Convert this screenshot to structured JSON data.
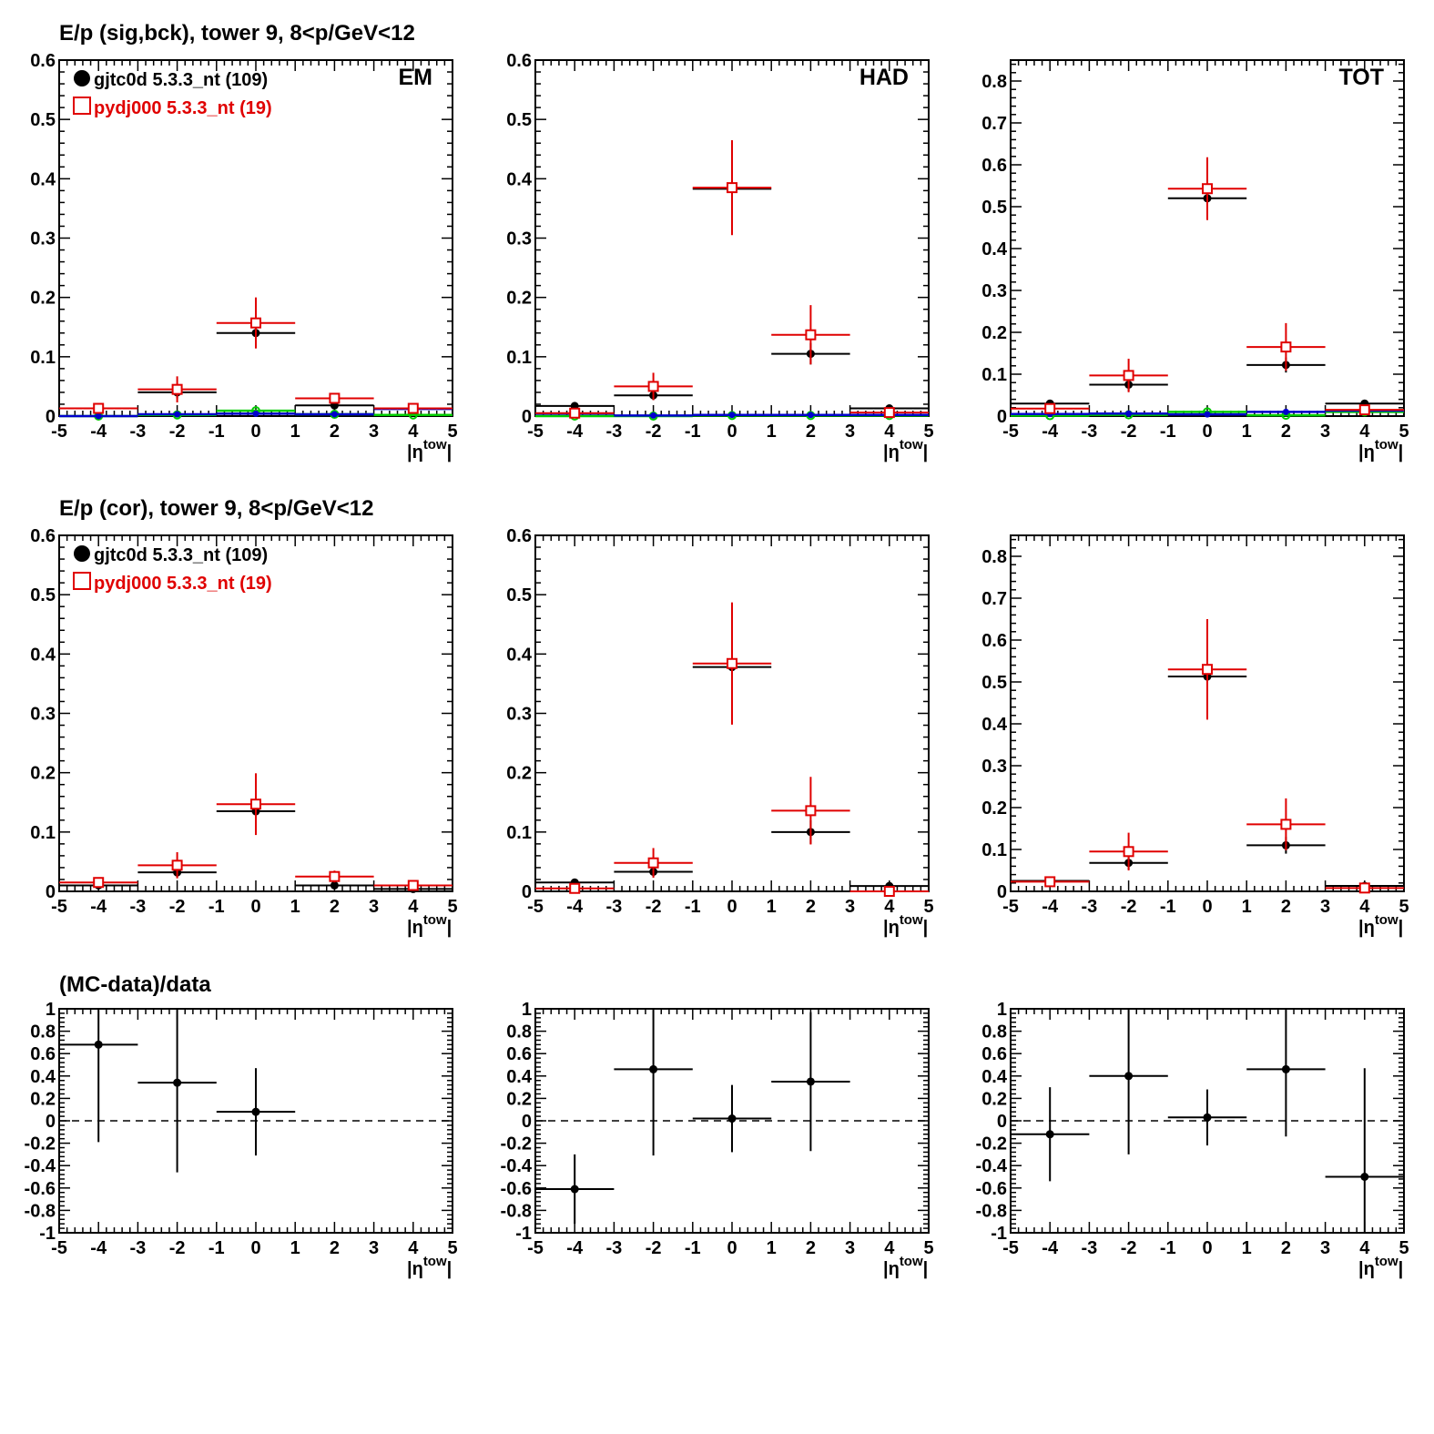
{
  "row_titles": [
    "E/p (sig,bck), tower 9,  8<p/GeV<12",
    "E/p (cor), tower 9,  8<p/GeV<12",
    "(MC-data)/data"
  ],
  "legend": {
    "data_label": "gjtc0d 5.3.3_nt (109)",
    "mc_label": "pydj000 5.3.3_nt (19)"
  },
  "colors": {
    "data": "#000000",
    "mc": "#e00000",
    "blue": "#0000cc",
    "green": "#00cc00"
  },
  "xlabel": "|η^tow|",
  "chart_data": [
    {
      "id": "sig-em",
      "type": "scatter",
      "corner_label": "EM",
      "legend": true,
      "xlabel": "|ηtow|",
      "xlim": [
        -5,
        5
      ],
      "ylim": [
        0,
        0.6
      ],
      "xticks": [
        "-5",
        "-4",
        "-3",
        "-2",
        "-1",
        "0",
        "1",
        "2",
        "3",
        "4",
        "5"
      ],
      "yticks": [
        "0",
        "0.1",
        "0.2",
        "0.3",
        "0.4",
        "0.5",
        "0.6"
      ],
      "series": [
        {
          "name": "gjtc0d 5.3.3_nt (109)",
          "style": "data",
          "x": [
            -4,
            -2,
            0,
            2,
            4
          ],
          "y": [
            0.013,
            0.04,
            0.14,
            0.018,
            0.013
          ],
          "err": [
            0.005,
            0.01,
            0.02,
            0.005,
            0.004
          ]
        },
        {
          "name": "pydj000 5.3.3_nt (19)",
          "style": "mc",
          "x": [
            -4,
            -2,
            0,
            2,
            4
          ],
          "y": [
            0.013,
            0.045,
            0.157,
            0.03,
            0.013
          ],
          "err": [
            0.006,
            0.022,
            0.043,
            0.008,
            0.004
          ]
        },
        {
          "style": "blue",
          "x": [
            -4,
            -2,
            0,
            2,
            4
          ],
          "y": [
            0.0,
            0.003,
            0.004,
            0.003,
            0.012
          ],
          "err": [
            0,
            0,
            0,
            0,
            0
          ]
        },
        {
          "style": "green",
          "x": [
            -4,
            -2,
            0,
            2,
            4
          ],
          "y": [
            0.0,
            0.002,
            0.009,
            0.003,
            0.002
          ],
          "err": [
            0,
            0,
            0,
            0,
            0
          ]
        }
      ]
    },
    {
      "id": "sig-had",
      "type": "scatter",
      "corner_label": "HAD",
      "legend": false,
      "xlabel": "|ηtow|",
      "xlim": [
        -5,
        5
      ],
      "ylim": [
        0,
        0.6
      ],
      "xticks": [
        "-5",
        "-4",
        "-3",
        "-2",
        "-1",
        "0",
        "1",
        "2",
        "3",
        "4",
        "5"
      ],
      "yticks": [
        "0",
        "0.1",
        "0.2",
        "0.3",
        "0.4",
        "0.5",
        "0.6"
      ],
      "series": [
        {
          "style": "data",
          "x": [
            -4,
            -2,
            0,
            2,
            4
          ],
          "y": [
            0.017,
            0.035,
            0.383,
            0.105,
            0.013
          ],
          "err": [
            0.004,
            0.008,
            0.03,
            0.018,
            0.004
          ]
        },
        {
          "style": "mc",
          "x": [
            -4,
            -2,
            0,
            2,
            4
          ],
          "y": [
            0.005,
            0.05,
            0.385,
            0.137,
            0.006
          ],
          "err": [
            0.004,
            0.023,
            0.08,
            0.05,
            0.004
          ]
        },
        {
          "style": "blue",
          "x": [
            -4,
            -2,
            0,
            2,
            4
          ],
          "y": [
            0.004,
            0.001,
            0.002,
            0.002,
            0.002
          ],
          "err": [
            0,
            0,
            0,
            0,
            0
          ]
        },
        {
          "style": "green",
          "x": [
            -4,
            -2,
            0,
            2,
            4
          ],
          "y": [
            0.0,
            0.0,
            0.001,
            0.001,
            0.001
          ],
          "err": [
            0,
            0,
            0,
            0,
            0
          ]
        }
      ]
    },
    {
      "id": "sig-tot",
      "type": "scatter",
      "corner_label": "TOT",
      "legend": false,
      "xlabel": "|ηtow|",
      "xlim": [
        -5,
        5
      ],
      "ylim": [
        0,
        0.85
      ],
      "xticks": [
        "-5",
        "-4",
        "-3",
        "-2",
        "-1",
        "0",
        "1",
        "2",
        "3",
        "4",
        "5"
      ],
      "yticks": [
        "0",
        "0.1",
        "0.2",
        "0.3",
        "0.4",
        "0.5",
        "0.6",
        "0.7",
        "0.8"
      ],
      "series": [
        {
          "style": "data",
          "x": [
            -4,
            -2,
            0,
            2,
            4
          ],
          "y": [
            0.03,
            0.075,
            0.52,
            0.122,
            0.03
          ],
          "err": [
            0.005,
            0.015,
            0.03,
            0.018,
            0.005
          ]
        },
        {
          "style": "mc",
          "x": [
            -4,
            -2,
            0,
            2,
            4
          ],
          "y": [
            0.018,
            0.097,
            0.543,
            0.165,
            0.015
          ],
          "err": [
            0.006,
            0.04,
            0.075,
            0.057,
            0.006
          ]
        },
        {
          "style": "blue",
          "x": [
            -4,
            -2,
            0,
            2,
            4
          ],
          "y": [
            0.005,
            0.006,
            0.004,
            0.01,
            0.013
          ],
          "err": [
            0,
            0,
            0,
            0,
            0
          ]
        },
        {
          "style": "green",
          "x": [
            -4,
            -2,
            0,
            2,
            4
          ],
          "y": [
            0.001,
            0.003,
            0.01,
            0.002,
            0.01
          ],
          "err": [
            0,
            0,
            0,
            0,
            0
          ]
        }
      ]
    },
    {
      "id": "cor-em",
      "type": "scatter",
      "corner_label": "",
      "legend": true,
      "xlabel": "|ηtow|",
      "xlim": [
        -5,
        5
      ],
      "ylim": [
        0,
        0.6
      ],
      "xticks": [
        "-5",
        "-4",
        "-3",
        "-2",
        "-1",
        "0",
        "1",
        "2",
        "3",
        "4",
        "5"
      ],
      "yticks": [
        "0",
        "0.1",
        "0.2",
        "0.3",
        "0.4",
        "0.5",
        "0.6"
      ],
      "series": [
        {
          "name": "gjtc0d 5.3.3_nt (109)",
          "style": "data",
          "x": [
            -4,
            -2,
            0,
            2,
            4
          ],
          "y": [
            0.01,
            0.032,
            0.135,
            0.01,
            0.004
          ],
          "err": [
            0.004,
            0.008,
            0.02,
            0.004,
            0.003
          ]
        },
        {
          "name": "pydj000 5.3.3_nt (19)",
          "style": "mc",
          "x": [
            -4,
            -2,
            0,
            2,
            4
          ],
          "y": [
            0.015,
            0.044,
            0.147,
            0.025,
            0.01
          ],
          "err": [
            0.005,
            0.022,
            0.052,
            0.01,
            0.005
          ]
        }
      ]
    },
    {
      "id": "cor-had",
      "type": "scatter",
      "corner_label": "",
      "legend": false,
      "xlabel": "|ηtow|",
      "xlim": [
        -5,
        5
      ],
      "ylim": [
        0,
        0.6
      ],
      "xticks": [
        "-5",
        "-4",
        "-3",
        "-2",
        "-1",
        "0",
        "1",
        "2",
        "3",
        "4",
        "5"
      ],
      "yticks": [
        "0",
        "0.1",
        "0.2",
        "0.3",
        "0.4",
        "0.5",
        "0.6"
      ],
      "series": [
        {
          "style": "data",
          "x": [
            -4,
            -2,
            0,
            2,
            4
          ],
          "y": [
            0.015,
            0.033,
            0.378,
            0.1,
            0.009
          ],
          "err": [
            0.004,
            0.008,
            0.03,
            0.02,
            0.004
          ]
        },
        {
          "style": "mc",
          "x": [
            -4,
            -2,
            0,
            2,
            4
          ],
          "y": [
            0.005,
            0.048,
            0.384,
            0.136,
            0.0
          ],
          "err": [
            0.004,
            0.025,
            0.103,
            0.057,
            0.0
          ]
        }
      ]
    },
    {
      "id": "cor-tot",
      "type": "scatter",
      "corner_label": "",
      "legend": false,
      "xlabel": "|ηtow|",
      "xlim": [
        -5,
        5
      ],
      "ylim": [
        0,
        0.85
      ],
      "xticks": [
        "-5",
        "-4",
        "-3",
        "-2",
        "-1",
        "0",
        "1",
        "2",
        "3",
        "4",
        "5"
      ],
      "yticks": [
        "0",
        "0.1",
        "0.2",
        "0.3",
        "0.4",
        "0.5",
        "0.6",
        "0.7",
        "0.8"
      ],
      "series": [
        {
          "style": "data",
          "x": [
            -4,
            -2,
            0,
            2,
            4
          ],
          "y": [
            0.025,
            0.068,
            0.513,
            0.11,
            0.013
          ],
          "err": [
            0.005,
            0.015,
            0.03,
            0.02,
            0.005
          ]
        },
        {
          "style": "mc",
          "x": [
            -4,
            -2,
            0,
            2,
            4
          ],
          "y": [
            0.023,
            0.095,
            0.53,
            0.16,
            0.008
          ],
          "err": [
            0.006,
            0.045,
            0.12,
            0.062,
            0.005
          ]
        }
      ]
    },
    {
      "id": "ratio-em",
      "type": "scatter",
      "corner_label": "",
      "legend": false,
      "xlabel": "|ηtow|",
      "xlim": [
        -5,
        5
      ],
      "ylim": [
        -1,
        1
      ],
      "zero_line": true,
      "xticks": [
        "-5",
        "-4",
        "-3",
        "-2",
        "-1",
        "0",
        "1",
        "2",
        "3",
        "4",
        "5"
      ],
      "yticks": [
        "-1",
        "-0.8",
        "-0.6",
        "-0.4",
        "-0.2",
        "0",
        "0.2",
        "0.4",
        "0.6",
        "0.8",
        "1"
      ],
      "series": [
        {
          "style": "data",
          "x": [
            -4,
            -2,
            0
          ],
          "y": [
            0.68,
            0.34,
            0.08
          ],
          "err": [
            0.87,
            0.8,
            0.39
          ]
        }
      ]
    },
    {
      "id": "ratio-had",
      "type": "scatter",
      "corner_label": "",
      "legend": false,
      "xlabel": "|ηtow|",
      "xlim": [
        -5,
        5
      ],
      "ylim": [
        -1,
        1
      ],
      "zero_line": true,
      "xticks": [
        "-5",
        "-4",
        "-3",
        "-2",
        "-1",
        "0",
        "1",
        "2",
        "3",
        "4",
        "5"
      ],
      "yticks": [
        "-1",
        "-0.8",
        "-0.6",
        "-0.4",
        "-0.2",
        "0",
        "0.2",
        "0.4",
        "0.6",
        "0.8",
        "1"
      ],
      "series": [
        {
          "style": "data",
          "x": [
            -4,
            -2,
            0,
            2
          ],
          "y": [
            -0.61,
            0.46,
            0.02,
            0.35
          ],
          "err": [
            0.31,
            0.77,
            0.3,
            0.62
          ]
        }
      ]
    },
    {
      "id": "ratio-tot",
      "type": "scatter",
      "corner_label": "",
      "legend": false,
      "xlabel": "|ηtow|",
      "xlim": [
        -5,
        5
      ],
      "ylim": [
        -1,
        1
      ],
      "zero_line": true,
      "xticks": [
        "-5",
        "-4",
        "-3",
        "-2",
        "-1",
        "0",
        "1",
        "2",
        "3",
        "4",
        "5"
      ],
      "yticks": [
        "-1",
        "-0.8",
        "-0.6",
        "-0.4",
        "-0.2",
        "0",
        "0.2",
        "0.4",
        "0.6",
        "0.8",
        "1"
      ],
      "series": [
        {
          "style": "data",
          "x": [
            -4,
            -2,
            0,
            2,
            4
          ],
          "y": [
            -0.12,
            0.4,
            0.03,
            0.46,
            -0.5
          ],
          "err": [
            0.42,
            0.7,
            0.25,
            0.6,
            0.97
          ]
        }
      ]
    }
  ]
}
